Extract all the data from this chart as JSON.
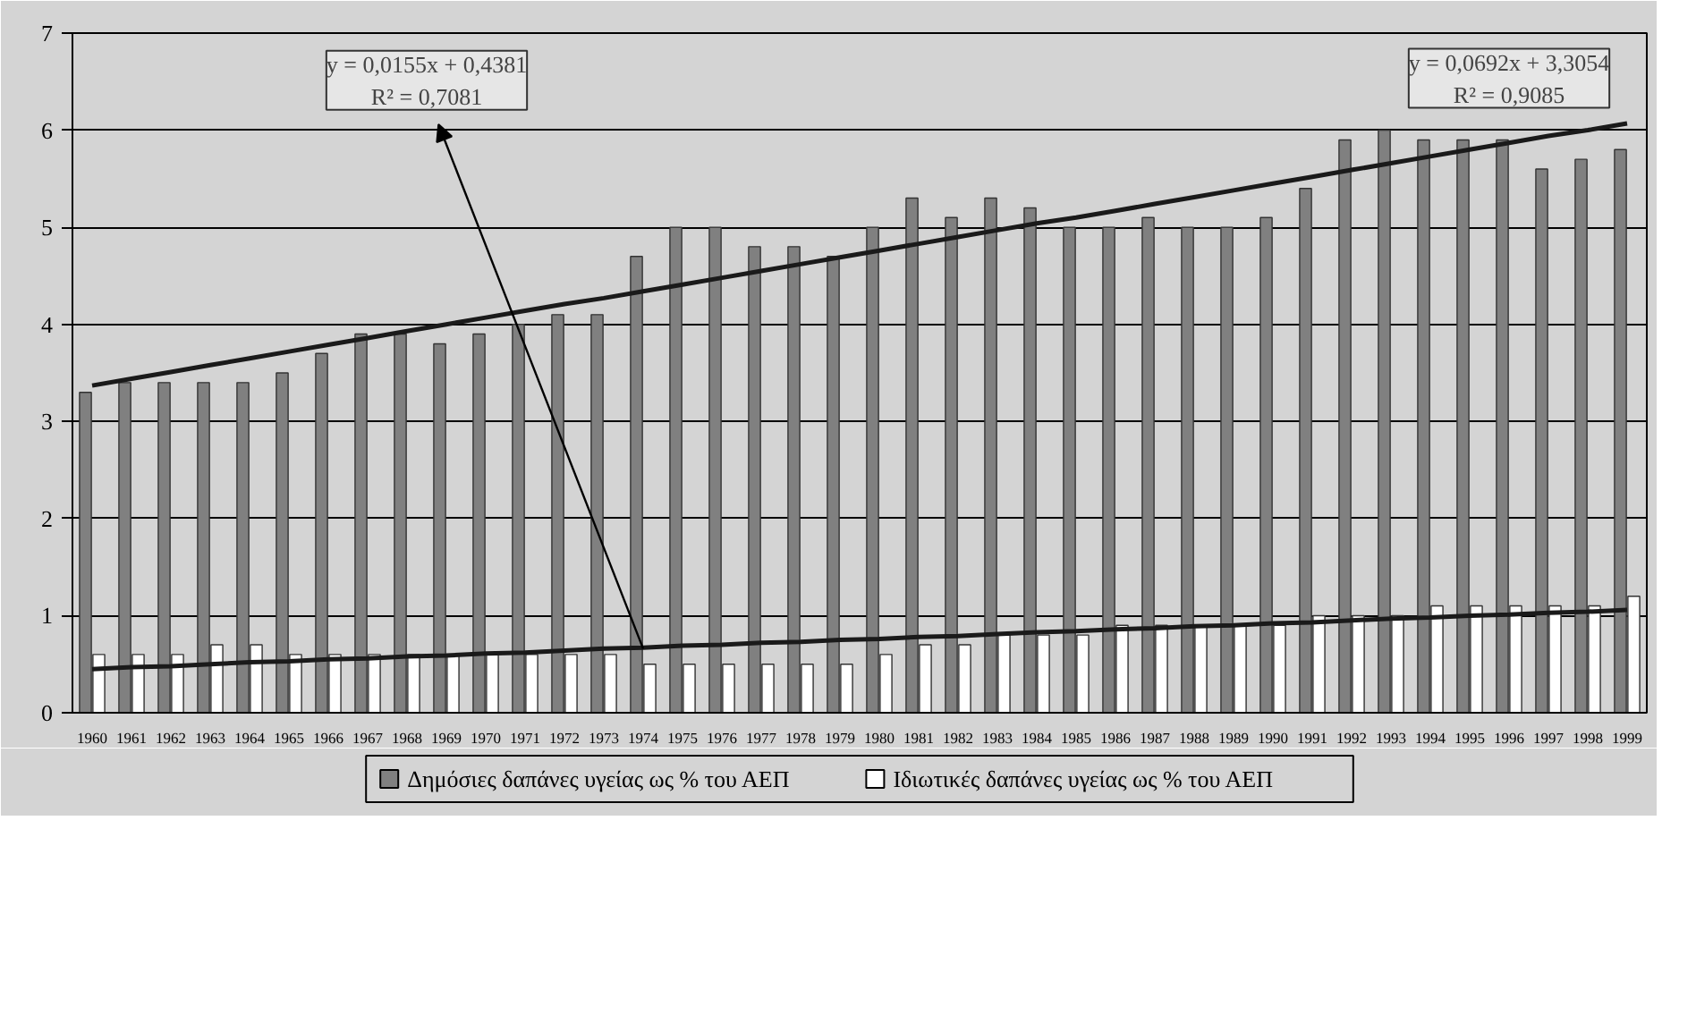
{
  "chart_data": {
    "type": "bar",
    "categories": [
      "1960",
      "1961",
      "1962",
      "1963",
      "1964",
      "1965",
      "1966",
      "1967",
      "1968",
      "1969",
      "1970",
      "1971",
      "1972",
      "1973",
      "1974",
      "1975",
      "1976",
      "1977",
      "1978",
      "1979",
      "1980",
      "1981",
      "1982",
      "1983",
      "1984",
      "1985",
      "1986",
      "1987",
      "1988",
      "1989",
      "1990",
      "1991",
      "1992",
      "1993",
      "1994",
      "1995",
      "1996",
      "1997",
      "1998",
      "1999"
    ],
    "series": [
      {
        "name": "Δημόσιες δαπάνες υγείας ως % του ΑΕΠ",
        "color": "#808080",
        "values": [
          3.3,
          3.4,
          3.4,
          3.4,
          3.4,
          3.5,
          3.7,
          3.9,
          3.9,
          3.8,
          3.9,
          4.0,
          4.1,
          4.1,
          4.7,
          5.0,
          5.0,
          4.8,
          4.8,
          4.7,
          5.0,
          5.3,
          5.1,
          5.3,
          5.2,
          5.0,
          5.0,
          5.1,
          5.0,
          5.0,
          5.1,
          5.4,
          5.9,
          6.0,
          5.9,
          5.9,
          5.9,
          5.6,
          5.7,
          5.8
        ]
      },
      {
        "name": "Ιδιωτικές δαπάνες υγείας ως % του ΑΕΠ",
        "color": "#ffffff",
        "values": [
          0.6,
          0.6,
          0.6,
          0.7,
          0.7,
          0.6,
          0.6,
          0.6,
          0.6,
          0.6,
          0.6,
          0.6,
          0.6,
          0.6,
          0.5,
          0.5,
          0.5,
          0.5,
          0.5,
          0.5,
          0.6,
          0.7,
          0.7,
          0.8,
          0.8,
          0.8,
          0.9,
          0.9,
          0.9,
          0.9,
          0.9,
          1.0,
          1.0,
          1.0,
          1.1,
          1.1,
          1.1,
          1.1,
          1.1,
          1.2
        ]
      },
      {
        "type": "line",
        "color": "#1a1a1a",
        "values": [
          3.37,
          3.44,
          3.51,
          3.58,
          3.65,
          3.72,
          3.79,
          3.86,
          3.93,
          4.0,
          4.07,
          4.14,
          4.21,
          4.27,
          4.34,
          4.41,
          4.48,
          4.55,
          4.62,
          4.69,
          4.76,
          4.83,
          4.9,
          4.97,
          5.04,
          5.1,
          5.17,
          5.24,
          5.31,
          5.38,
          5.45,
          5.52,
          5.59,
          5.66,
          5.73,
          5.8,
          5.87,
          5.94,
          6.0,
          6.07
        ]
      },
      {
        "type": "line",
        "color": "#1a1a1a",
        "values": [
          0.45,
          0.47,
          0.48,
          0.5,
          0.52,
          0.53,
          0.55,
          0.56,
          0.58,
          0.59,
          0.61,
          0.62,
          0.64,
          0.66,
          0.67,
          0.69,
          0.7,
          0.72,
          0.73,
          0.75,
          0.76,
          0.78,
          0.79,
          0.81,
          0.83,
          0.84,
          0.86,
          0.87,
          0.89,
          0.9,
          0.92,
          0.93,
          0.95,
          0.97,
          0.98,
          1.0,
          1.01,
          1.03,
          1.04,
          1.06
        ]
      }
    ],
    "annotations": [
      {
        "text": "y = 0,0155x + 0,4381\nR² = 0,7081",
        "x": "1974",
        "y": 0.66
      },
      "y = 0,0692x + 3,3054\nR² = 0,9085"
    ],
    "ylim": [
      0,
      7
    ],
    "yticks": [
      0,
      1,
      2,
      3,
      4,
      5,
      6,
      7
    ],
    "grid": "y",
    "legend": "bottom"
  }
}
